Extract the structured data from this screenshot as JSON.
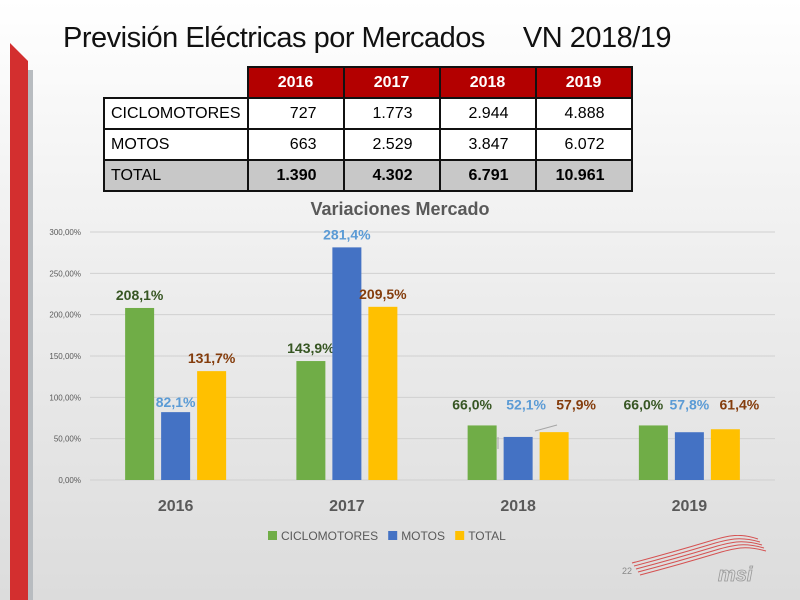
{
  "title": "Previsión Eléctricas por Mercados",
  "subtitle": "VN 2018/19",
  "table": {
    "headers": [
      "2016",
      "2017",
      "2018",
      "2019"
    ],
    "rows": [
      {
        "label": "CICLOMOTORES",
        "values": [
          "727",
          "1.773",
          "2.944",
          "4.888"
        ]
      },
      {
        "label": "MOTOS",
        "values": [
          "663",
          "2.529",
          "3.847",
          "6.072"
        ]
      },
      {
        "label": "TOTAL",
        "values": [
          "1.390",
          "4.302",
          "6.791",
          "10.961"
        ]
      }
    ]
  },
  "page_number": "22",
  "logo_text": "msi",
  "chart_data": {
    "type": "bar",
    "title": "Variaciones Mercado",
    "categories": [
      "2016",
      "2017",
      "2018",
      "2019"
    ],
    "series": [
      {
        "name": "CICLOMOTORES",
        "color": "#70ad47",
        "label_color": "#375623",
        "values": [
          208.1,
          143.9,
          66.0,
          66.0
        ],
        "labels": [
          "208,1%",
          "143,9%",
          "66,0%",
          "66,0%"
        ]
      },
      {
        "name": "MOTOS",
        "color": "#4472c4",
        "label_color": "#5b9bd5",
        "values": [
          82.1,
          281.4,
          52.1,
          57.8
        ],
        "labels": [
          "82,1%",
          "281,4%",
          "52,1%",
          "57,8%"
        ]
      },
      {
        "name": "TOTAL",
        "color": "#ffc000",
        "label_color": "#843c0c",
        "values": [
          131.7,
          209.5,
          57.9,
          61.4
        ],
        "labels": [
          "131,7%",
          "209,5%",
          "57,9%",
          "61,4%"
        ]
      }
    ],
    "yticks": [
      "0,00%",
      "50,00%",
      "100,00%",
      "150,00%",
      "200,00%",
      "250,00%",
      "300,00%"
    ],
    "ylim": [
      0,
      300
    ],
    "grid": true,
    "legend": "bottom"
  }
}
